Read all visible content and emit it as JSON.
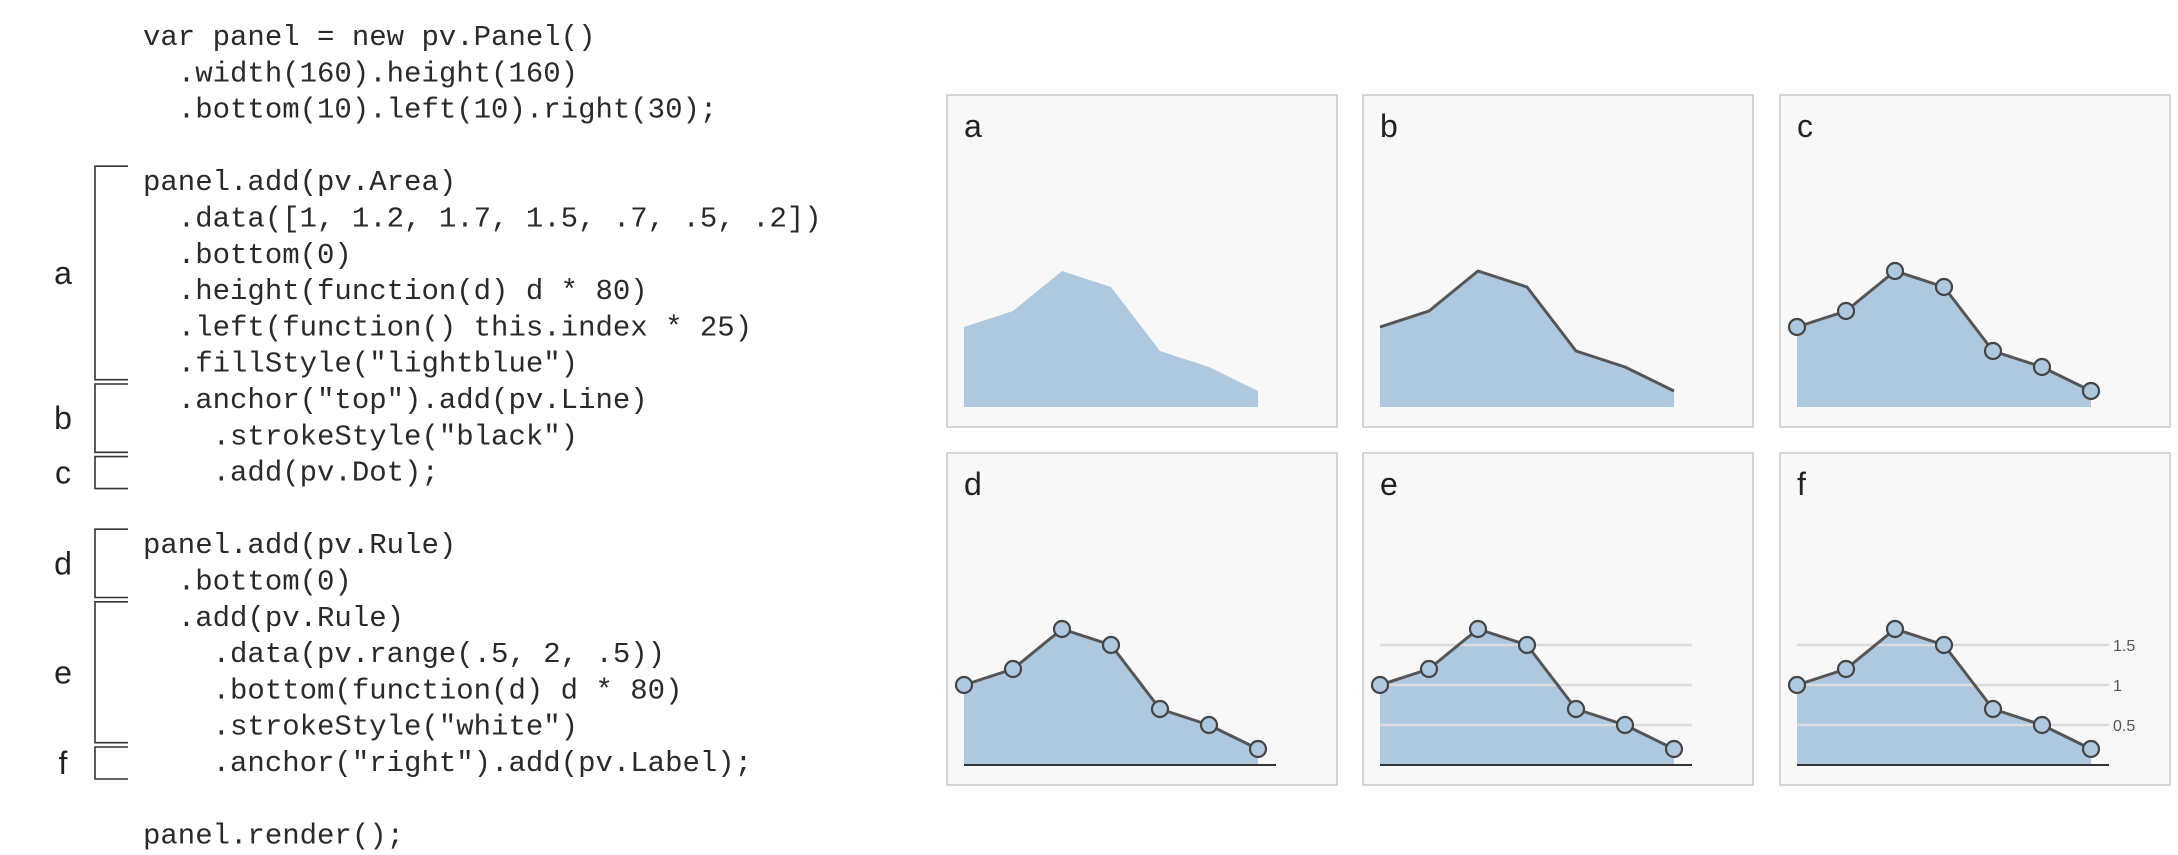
{
  "code": {
    "lines": [
      "var panel = new pv.Panel()",
      "  .width(160).height(160)",
      "  .bottom(10).left(10).right(30);",
      "",
      "panel.add(pv.Area)",
      "  .data([1, 1.2, 1.7, 1.5, .7, .5, .2])",
      "  .bottom(0)",
      "  .height(function(d) d * 80)",
      "  .left(function() this.index * 25)",
      "  .fillStyle(\"lightblue\")",
      "  .anchor(\"top\").add(pv.Line)",
      "    .strokeStyle(\"black\")",
      "    .add(pv.Dot);",
      "",
      "panel.add(pv.Rule)",
      "  .bottom(0)",
      "  .add(pv.Rule)",
      "    .data(pv.range(.5, 2, .5))",
      "    .bottom(function(d) d * 80)",
      "    .strokeStyle(\"white\")",
      "    .anchor(\"right\").add(pv.Label);",
      "",
      "panel.render();"
    ],
    "sections": [
      {
        "label": "a",
        "from": 4,
        "to": 9
      },
      {
        "label": "b",
        "from": 10,
        "to": 11
      },
      {
        "label": "c",
        "from": 12,
        "to": 12
      },
      {
        "label": "d",
        "from": 14,
        "to": 15
      },
      {
        "label": "e",
        "from": 16,
        "to": 19
      },
      {
        "label": "f",
        "from": 20,
        "to": 20
      }
    ]
  },
  "chart_data": {
    "type": "area",
    "values": [
      1,
      1.2,
      1.7,
      1.5,
      0.7,
      0.5,
      0.2
    ],
    "rule_values": [
      0.5,
      1,
      1.5
    ],
    "rule_tick_labels": [
      "0.5",
      "1",
      "1.5"
    ],
    "panels": [
      {
        "label": "a",
        "line": false,
        "dots": false,
        "baseline": false,
        "rules": false,
        "tick_labels": false
      },
      {
        "label": "b",
        "line": true,
        "dots": false,
        "baseline": false,
        "rules": false,
        "tick_labels": false
      },
      {
        "label": "c",
        "line": true,
        "dots": true,
        "baseline": false,
        "rules": false,
        "tick_labels": false
      },
      {
        "label": "d",
        "line": true,
        "dots": true,
        "baseline": true,
        "rules": false,
        "tick_labels": false
      },
      {
        "label": "e",
        "line": true,
        "dots": true,
        "baseline": true,
        "rules": true,
        "tick_labels": false
      },
      {
        "label": "f",
        "line": true,
        "dots": true,
        "baseline": true,
        "rules": true,
        "tick_labels": true
      }
    ],
    "colors": {
      "area_fill": "#aec8df",
      "line": "#555555",
      "dot_fill": "#aec8df",
      "dot_stroke": "#444444",
      "rule": "#dcdcdc",
      "baseline": "#333333"
    }
  }
}
